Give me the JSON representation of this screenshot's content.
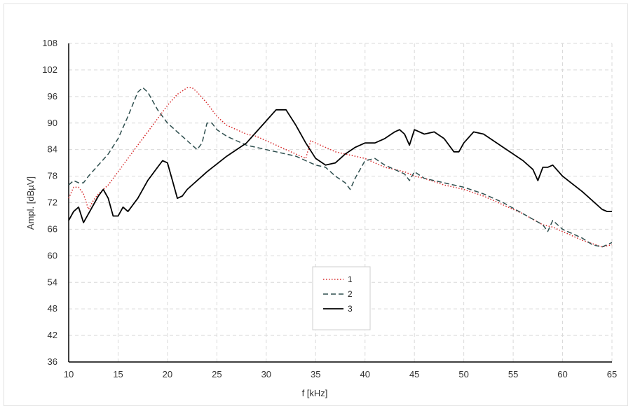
{
  "chart_data": {
    "type": "line",
    "title": "",
    "xlabel": "f [kHz]",
    "ylabel": "Ampl. [dBµV]",
    "xlim": [
      10,
      65
    ],
    "ylim": [
      36,
      108
    ],
    "xticks": [
      10,
      15,
      20,
      25,
      30,
      35,
      40,
      45,
      50,
      55,
      60,
      65
    ],
    "yticks": [
      36,
      42,
      48,
      54,
      60,
      66,
      72,
      78,
      84,
      90,
      96,
      102,
      108
    ],
    "grid": true,
    "legend_position": "center",
    "series": [
      {
        "name": "1",
        "color": "#d62728",
        "style": "dotted",
        "points": [
          [
            10,
            73
          ],
          [
            10.5,
            75.5
          ],
          [
            11,
            75.5
          ],
          [
            11.5,
            74
          ],
          [
            12,
            70.5
          ],
          [
            12.5,
            72.5
          ],
          [
            13,
            74
          ],
          [
            14,
            76
          ],
          [
            15,
            79
          ],
          [
            16,
            82
          ],
          [
            17,
            85
          ],
          [
            18,
            88
          ],
          [
            19,
            91
          ],
          [
            20,
            94
          ],
          [
            21,
            96.5
          ],
          [
            22,
            98
          ],
          [
            22.5,
            98
          ],
          [
            23,
            97
          ],
          [
            24,
            94.5
          ],
          [
            25,
            91.5
          ],
          [
            26,
            89.5
          ],
          [
            27,
            88.5
          ],
          [
            28,
            87.5
          ],
          [
            29,
            87
          ],
          [
            30,
            86
          ],
          [
            31,
            85
          ],
          [
            32,
            84
          ],
          [
            33,
            83
          ],
          [
            34,
            82
          ],
          [
            34.5,
            86
          ],
          [
            35,
            85.5
          ],
          [
            36,
            84.5
          ],
          [
            37,
            83.5
          ],
          [
            38,
            83
          ],
          [
            39,
            82.5
          ],
          [
            40,
            82
          ],
          [
            41,
            81
          ],
          [
            42,
            80
          ],
          [
            43,
            79.5
          ],
          [
            44,
            79
          ],
          [
            45,
            78
          ],
          [
            46,
            77.5
          ],
          [
            48,
            76
          ],
          [
            50,
            75
          ],
          [
            52,
            73.5
          ],
          [
            54,
            71.5
          ],
          [
            56,
            69.5
          ],
          [
            58,
            67
          ],
          [
            59,
            66.5
          ],
          [
            60,
            65.5
          ],
          [
            62,
            63.5
          ],
          [
            64,
            62
          ],
          [
            65,
            62.5
          ]
        ]
      },
      {
        "name": "2",
        "color": "#2f4f4f",
        "style": "dashed",
        "points": [
          [
            10,
            76
          ],
          [
            10.5,
            77
          ],
          [
            11,
            76.5
          ],
          [
            11.5,
            76.5
          ],
          [
            12,
            78
          ],
          [
            13,
            80.5
          ],
          [
            14,
            83
          ],
          [
            15,
            86.5
          ],
          [
            16,
            91.5
          ],
          [
            17,
            97
          ],
          [
            17.5,
            98
          ],
          [
            18,
            97
          ],
          [
            19,
            93
          ],
          [
            20,
            90
          ],
          [
            21,
            88
          ],
          [
            22,
            86
          ],
          [
            23,
            84
          ],
          [
            23.5,
            85.5
          ],
          [
            24,
            90
          ],
          [
            24.5,
            90
          ],
          [
            25,
            88.5
          ],
          [
            26,
            87
          ],
          [
            27,
            86
          ],
          [
            28,
            85
          ],
          [
            29,
            84.5
          ],
          [
            30,
            84
          ],
          [
            31,
            83.5
          ],
          [
            32,
            83
          ],
          [
            33,
            82.5
          ],
          [
            34,
            81.5
          ],
          [
            35,
            80.5
          ],
          [
            36,
            80
          ],
          [
            37,
            78
          ],
          [
            38,
            76.5
          ],
          [
            38.5,
            75
          ],
          [
            39,
            77.5
          ],
          [
            40,
            81.5
          ],
          [
            41,
            82
          ],
          [
            42,
            80.5
          ],
          [
            43,
            79.5
          ],
          [
            44,
            78.5
          ],
          [
            44.5,
            77
          ],
          [
            45,
            79
          ],
          [
            46,
            77.5
          ],
          [
            48,
            76.5
          ],
          [
            50,
            75.5
          ],
          [
            52,
            74
          ],
          [
            54,
            72
          ],
          [
            56,
            69.5
          ],
          [
            58,
            67
          ],
          [
            58.5,
            65.5
          ],
          [
            59,
            68
          ],
          [
            60,
            66
          ],
          [
            62,
            64
          ],
          [
            63,
            62.5
          ],
          [
            64,
            62
          ],
          [
            65,
            63
          ]
        ]
      },
      {
        "name": "3",
        "color": "#000000",
        "style": "solid",
        "points": [
          [
            10,
            68
          ],
          [
            10.5,
            70
          ],
          [
            11,
            71
          ],
          [
            11.5,
            67.5
          ],
          [
            12,
            69.5
          ],
          [
            13,
            73.5
          ],
          [
            13.5,
            75
          ],
          [
            14,
            73
          ],
          [
            14.5,
            69
          ],
          [
            15,
            69
          ],
          [
            15.5,
            71
          ],
          [
            16,
            70
          ],
          [
            17,
            73
          ],
          [
            18,
            77
          ],
          [
            19,
            80
          ],
          [
            19.5,
            81.5
          ],
          [
            20,
            81
          ],
          [
            20.5,
            77
          ],
          [
            21,
            73
          ],
          [
            21.5,
            73.5
          ],
          [
            22,
            75
          ],
          [
            24,
            79
          ],
          [
            26,
            82.5
          ],
          [
            28,
            85.5
          ],
          [
            29,
            88
          ],
          [
            30,
            90.5
          ],
          [
            31,
            93
          ],
          [
            32,
            93
          ],
          [
            33,
            89.5
          ],
          [
            34,
            85.5
          ],
          [
            35,
            82
          ],
          [
            36,
            80.5
          ],
          [
            37,
            81
          ],
          [
            38,
            83
          ],
          [
            39,
            84.5
          ],
          [
            40,
            85.5
          ],
          [
            41,
            85.5
          ],
          [
            42,
            86.5
          ],
          [
            43,
            88
          ],
          [
            43.5,
            88.5
          ],
          [
            44,
            87.5
          ],
          [
            44.5,
            85
          ],
          [
            45,
            88.5
          ],
          [
            46,
            87.5
          ],
          [
            47,
            88
          ],
          [
            48,
            86.5
          ],
          [
            49,
            83.5
          ],
          [
            49.5,
            83.5
          ],
          [
            50,
            85.5
          ],
          [
            51,
            88
          ],
          [
            52,
            87.5
          ],
          [
            54,
            84.5
          ],
          [
            56,
            81.5
          ],
          [
            57,
            79.5
          ],
          [
            57.5,
            77
          ],
          [
            58,
            80
          ],
          [
            58.5,
            80
          ],
          [
            59,
            80.5
          ],
          [
            60,
            78
          ],
          [
            62,
            74.5
          ],
          [
            64,
            70.5
          ],
          [
            64.5,
            70
          ],
          [
            65,
            70
          ]
        ]
      }
    ]
  }
}
